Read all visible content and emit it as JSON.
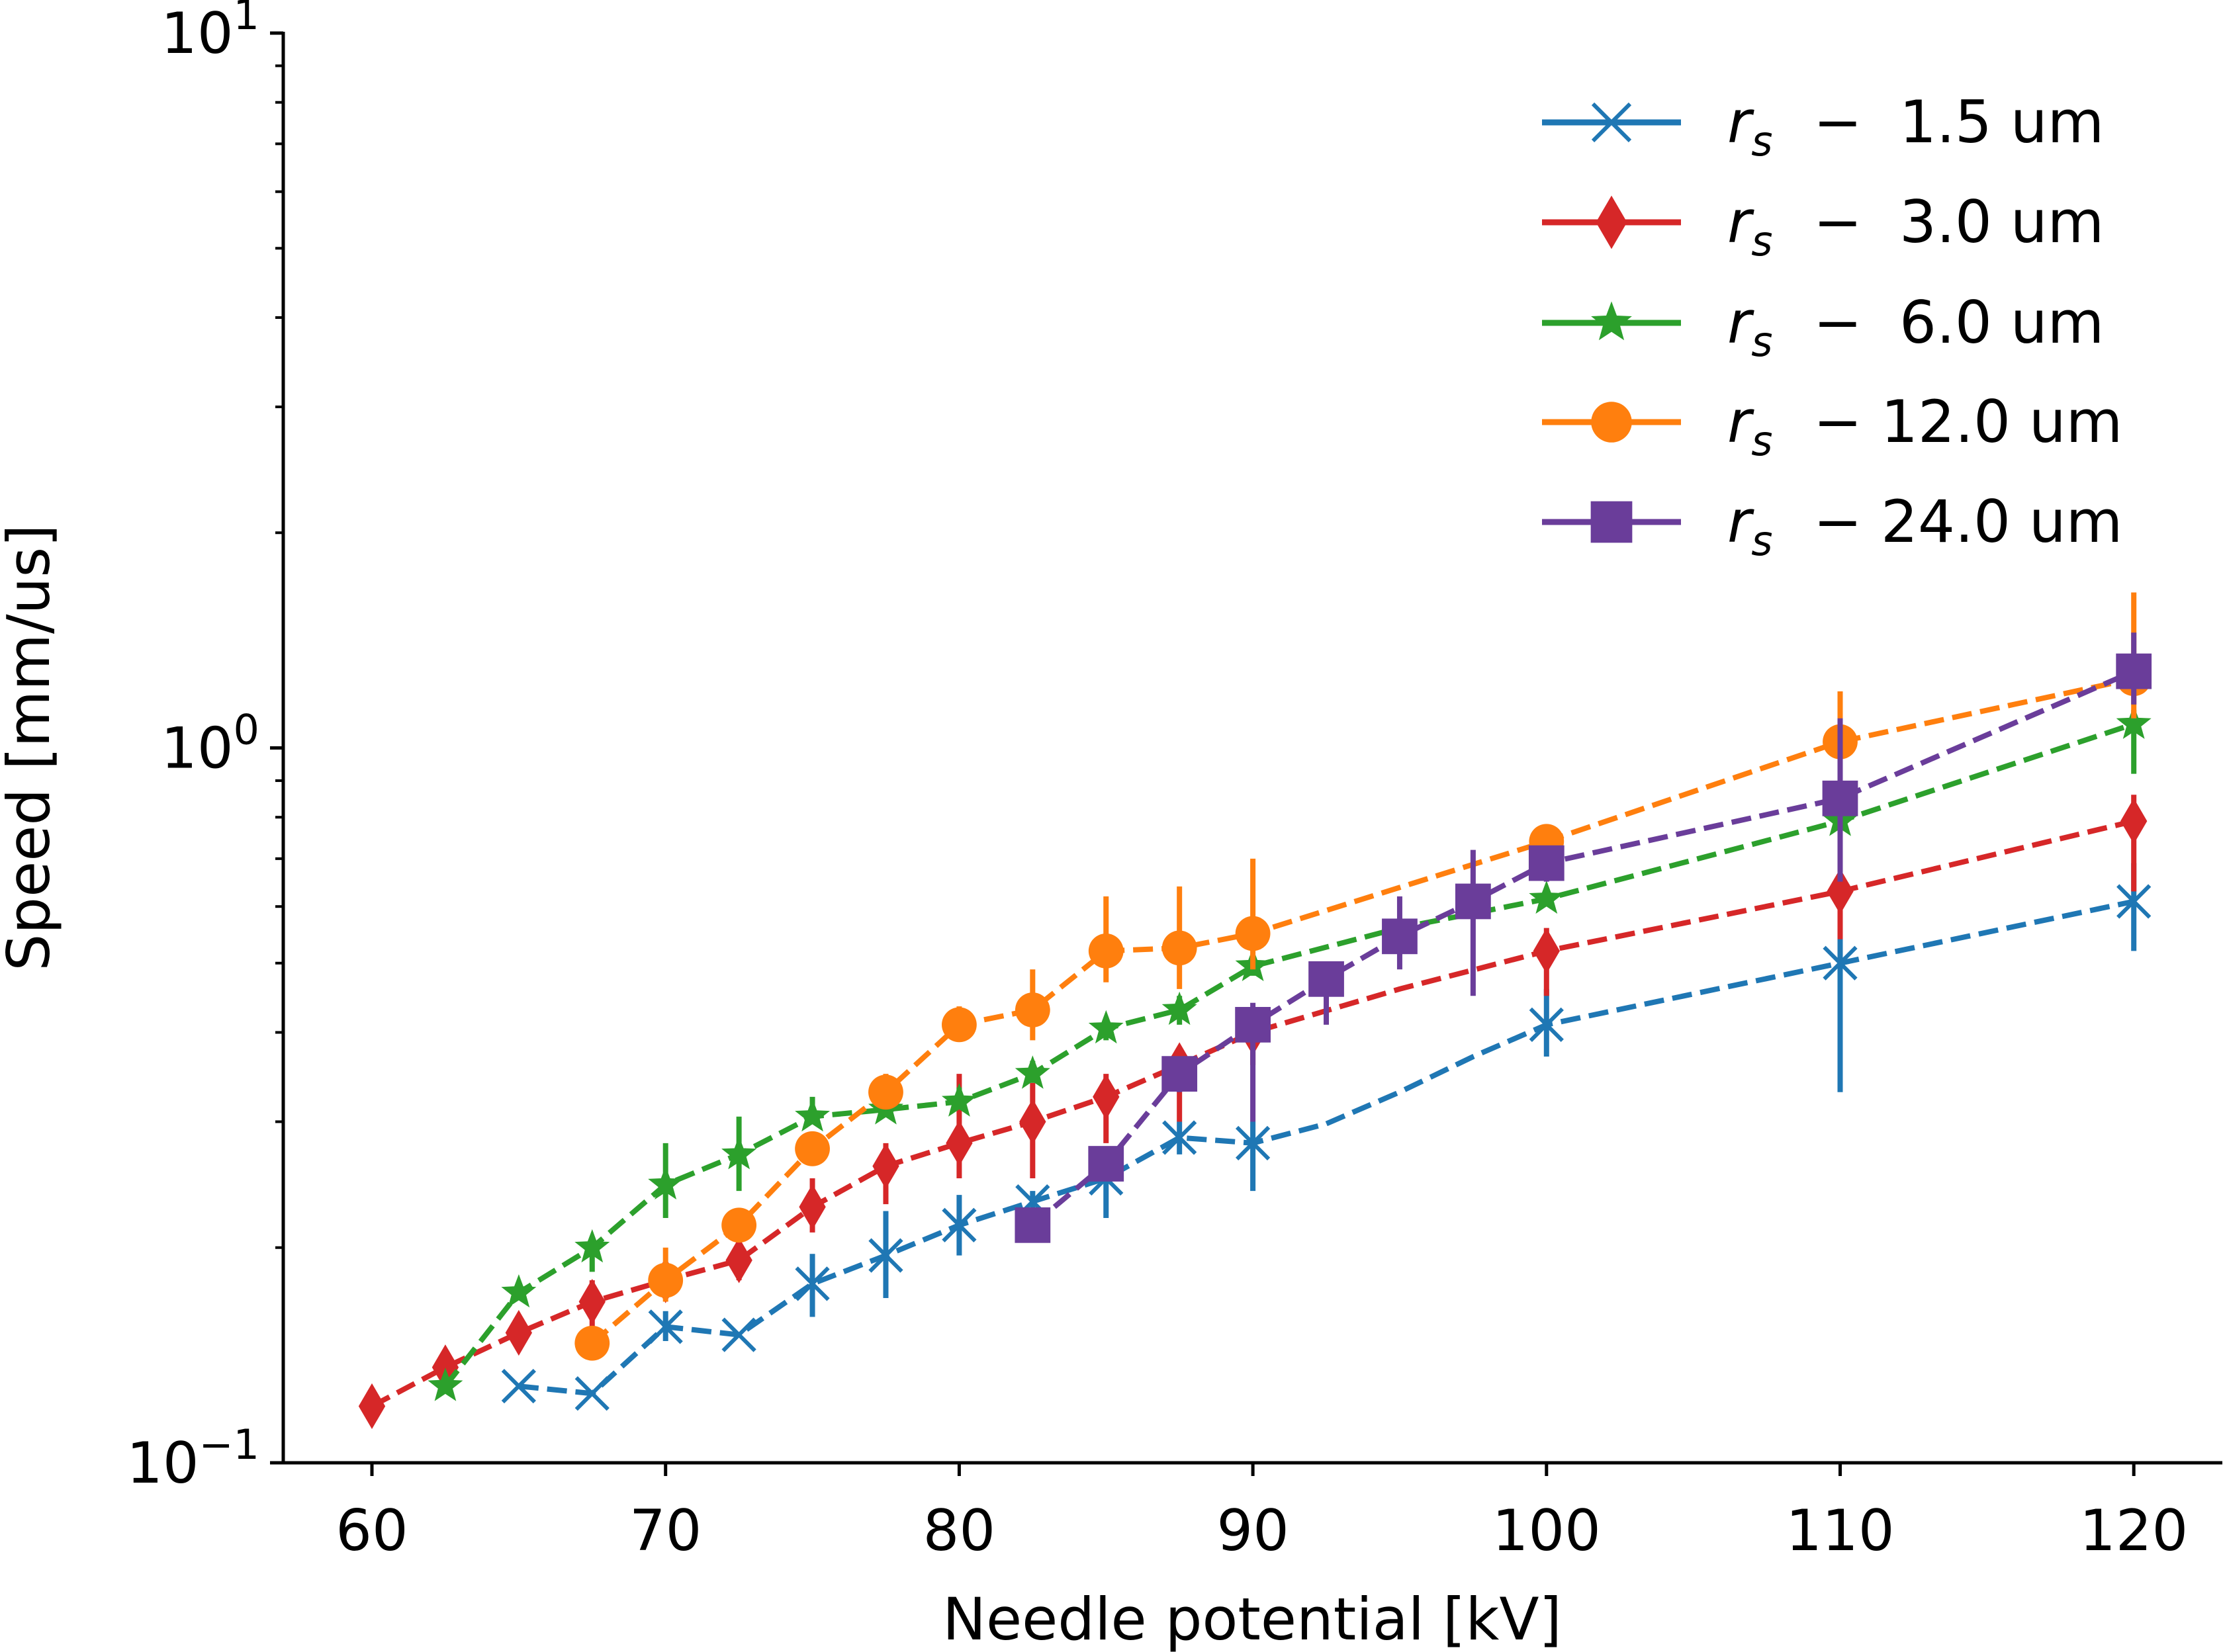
{
  "chart_data": {
    "type": "line",
    "title": "",
    "xlabel": "Needle potential [kV]",
    "ylabel": "Speed [mm/us]",
    "xlim": [
      56.7,
      123.0
    ],
    "ylim": [
      0.1,
      10
    ],
    "yscale": "log",
    "grid": false,
    "legend_position": "top-right",
    "x_ticks": [
      {
        "value": 60,
        "label": "60"
      },
      {
        "value": 70,
        "label": "70"
      },
      {
        "value": 80,
        "label": "80"
      },
      {
        "value": 90,
        "label": "90"
      },
      {
        "value": 100,
        "label": "100"
      },
      {
        "value": 110,
        "label": "110"
      },
      {
        "value": 120,
        "label": "120"
      }
    ],
    "y_ticks": [
      {
        "value": 0.1,
        "base": "10",
        "exp": "−1"
      },
      {
        "value": 1,
        "base": "10",
        "exp": "0"
      },
      {
        "value": 10,
        "base": "10",
        "exp": "1"
      }
    ],
    "series": [
      {
        "name": "rs − 1.5 um",
        "legend_prefix": "r",
        "legend_sub": "s",
        "legend_dash": "−",
        "legend_value": " 1.5 um",
        "color": "#1f77b4",
        "marker": "x",
        "points": [
          {
            "x": 65,
            "y": 0.128,
            "lo": 0.128,
            "hi": 0.128
          },
          {
            "x": 67.5,
            "y": 0.125,
            "lo": 0.125,
            "hi": 0.125
          },
          {
            "x": 70,
            "y": 0.155,
            "lo": 0.148,
            "hi": 0.163
          },
          {
            "x": 72.5,
            "y": 0.151,
            "lo": 0.151,
            "hi": 0.151
          },
          {
            "x": 75,
            "y": 0.178,
            "lo": 0.16,
            "hi": 0.196
          },
          {
            "x": 77.5,
            "y": 0.195,
            "lo": 0.17,
            "hi": 0.225
          },
          {
            "x": 80,
            "y": 0.215,
            "lo": 0.195,
            "hi": 0.237
          },
          {
            "x": 82.5,
            "y": 0.232,
            "lo": 0.225,
            "hi": 0.24
          },
          {
            "x": 85,
            "y": 0.25,
            "lo": 0.22,
            "hi": 0.27
          },
          {
            "x": 87.5,
            "y": 0.285,
            "lo": 0.27,
            "hi": 0.3
          },
          {
            "x": 90,
            "y": 0.28,
            "lo": 0.24,
            "hi": 0.3
          },
          {
            "x": 92.5,
            "y": 0.298
          },
          {
            "x": 95,
            "y": 0.33
          },
          {
            "x": 97.5,
            "y": 0.37
          },
          {
            "x": 100,
            "y": 0.41,
            "lo": 0.37,
            "hi": 0.46
          },
          {
            "x": 110,
            "y": 0.5,
            "lo": 0.33,
            "hi": 0.6
          },
          {
            "x": 120,
            "y": 0.61,
            "lo": 0.52,
            "hi": 0.69
          }
        ]
      },
      {
        "name": "rs − 3.0 um",
        "legend_prefix": "r",
        "legend_sub": "s",
        "legend_dash": "−",
        "legend_value": " 3.0 um",
        "color": "#d62728",
        "marker": "d",
        "points": [
          {
            "x": 60,
            "y": 0.12,
            "lo": 0.12,
            "hi": 0.12
          },
          {
            "x": 62.5,
            "y": 0.136,
            "lo": 0.136,
            "hi": 0.136
          },
          {
            "x": 65,
            "y": 0.152,
            "lo": 0.145,
            "hi": 0.16
          },
          {
            "x": 67.5,
            "y": 0.168,
            "lo": 0.155,
            "hi": 0.18
          },
          {
            "x": 70,
            "y": 0.18,
            "lo": 0.175,
            "hi": 0.19
          },
          {
            "x": 72.5,
            "y": 0.192,
            "lo": 0.18,
            "hi": 0.205
          },
          {
            "x": 75,
            "y": 0.228,
            "lo": 0.21,
            "hi": 0.25
          },
          {
            "x": 77.5,
            "y": 0.26,
            "lo": 0.23,
            "hi": 0.28
          },
          {
            "x": 80,
            "y": 0.28,
            "lo": 0.25,
            "hi": 0.35
          },
          {
            "x": 82.5,
            "y": 0.3,
            "lo": 0.25,
            "hi": 0.34
          },
          {
            "x": 85,
            "y": 0.325,
            "lo": 0.28,
            "hi": 0.35
          },
          {
            "x": 87.5,
            "y": 0.36,
            "lo": 0.3,
            "hi": 0.38
          },
          {
            "x": 90,
            "y": 0.4,
            "lo": 0.36,
            "hi": 0.43
          },
          {
            "x": 95,
            "y": 0.46
          },
          {
            "x": 100,
            "y": 0.52,
            "lo": 0.45,
            "hi": 0.56
          },
          {
            "x": 110,
            "y": 0.63,
            "lo": 0.54,
            "hi": 0.68
          },
          {
            "x": 120,
            "y": 0.79,
            "lo": 0.63,
            "hi": 0.86
          }
        ]
      },
      {
        "name": "rs − 6.0 um",
        "legend_prefix": "r",
        "legend_sub": "s",
        "legend_dash": "−",
        "legend_value": " 6.0 um",
        "color": "#2ca02c",
        "marker": "*",
        "points": [
          {
            "x": 62.5,
            "y": 0.128,
            "lo": 0.128,
            "hi": 0.128
          },
          {
            "x": 65,
            "y": 0.173,
            "lo": 0.17,
            "hi": 0.178
          },
          {
            "x": 67.5,
            "y": 0.2,
            "lo": 0.185,
            "hi": 0.205
          },
          {
            "x": 70,
            "y": 0.245,
            "lo": 0.22,
            "hi": 0.28
          },
          {
            "x": 72.5,
            "y": 0.27,
            "lo": 0.24,
            "hi": 0.305
          },
          {
            "x": 75,
            "y": 0.305,
            "lo": 0.3,
            "hi": 0.325
          },
          {
            "x": 77.5,
            "y": 0.312,
            "lo": 0.31,
            "hi": 0.32
          },
          {
            "x": 80,
            "y": 0.32,
            "lo": 0.315,
            "hi": 0.335
          },
          {
            "x": 82.5,
            "y": 0.35,
            "lo": 0.34,
            "hi": 0.365
          },
          {
            "x": 85,
            "y": 0.405,
            "lo": 0.39,
            "hi": 0.42
          },
          {
            "x": 87.5,
            "y": 0.43,
            "lo": 0.41,
            "hi": 0.45
          },
          {
            "x": 90,
            "y": 0.495,
            "lo": 0.48,
            "hi": 0.51
          },
          {
            "x": 95,
            "y": 0.56
          },
          {
            "x": 100,
            "y": 0.615,
            "lo": 0.6,
            "hi": 0.63
          },
          {
            "x": 110,
            "y": 0.79,
            "lo": 0.76,
            "hi": 0.83
          },
          {
            "x": 120,
            "y": 1.08,
            "lo": 0.92,
            "hi": 1.13
          }
        ]
      },
      {
        "name": "rs − 12.0 um",
        "legend_prefix": "r",
        "legend_sub": "s",
        "legend_dash": "−",
        "legend_value": "12.0 um",
        "color": "#ff7f0e",
        "marker": "o",
        "points": [
          {
            "x": 67.5,
            "y": 0.147,
            "lo": 0.147,
            "hi": 0.147
          },
          {
            "x": 70,
            "y": 0.18,
            "lo": 0.168,
            "hi": 0.2
          },
          {
            "x": 72.5,
            "y": 0.215,
            "lo": 0.21,
            "hi": 0.22
          },
          {
            "x": 75,
            "y": 0.275,
            "lo": 0.265,
            "hi": 0.285
          },
          {
            "x": 77.5,
            "y": 0.33,
            "lo": 0.315,
            "hi": 0.35
          },
          {
            "x": 80,
            "y": 0.41,
            "lo": 0.39,
            "hi": 0.435
          },
          {
            "x": 82.5,
            "y": 0.43,
            "lo": 0.39,
            "hi": 0.49
          },
          {
            "x": 85,
            "y": 0.52,
            "lo": 0.47,
            "hi": 0.62
          },
          {
            "x": 87.5,
            "y": 0.525,
            "lo": 0.46,
            "hi": 0.64
          },
          {
            "x": 90,
            "y": 0.55,
            "lo": 0.49,
            "hi": 0.7
          },
          {
            "x": 100,
            "y": 0.74,
            "lo": 0.7,
            "hi": 0.78
          },
          {
            "x": 110,
            "y": 1.02,
            "lo": 0.96,
            "hi": 1.2
          },
          {
            "x": 120,
            "y": 1.25,
            "lo": 1.1,
            "hi": 1.65
          }
        ]
      },
      {
        "name": "rs − 24.0 um",
        "legend_prefix": "r",
        "legend_sub": "s",
        "legend_dash": "−",
        "legend_value": "24.0 um",
        "color": "#6a3d9a",
        "marker": "s",
        "points": [
          {
            "x": 82.5,
            "y": 0.215,
            "lo": 0.215,
            "hi": 0.215
          },
          {
            "x": 85,
            "y": 0.262,
            "lo": 0.25,
            "hi": 0.27
          },
          {
            "x": 87.5,
            "y": 0.35,
            "lo": 0.33,
            "hi": 0.36
          },
          {
            "x": 90,
            "y": 0.41,
            "lo": 0.3,
            "hi": 0.44
          },
          {
            "x": 92.5,
            "y": 0.475,
            "lo": 0.41,
            "hi": 0.5
          },
          {
            "x": 95,
            "y": 0.545,
            "lo": 0.49,
            "hi": 0.62
          },
          {
            "x": 97.5,
            "y": 0.61,
            "lo": 0.45,
            "hi": 0.72
          },
          {
            "x": 100,
            "y": 0.69,
            "lo": 0.65,
            "hi": 0.72
          },
          {
            "x": 110,
            "y": 0.85,
            "lo": 0.65,
            "hi": 1.1
          },
          {
            "x": 120,
            "y": 1.28,
            "lo": 1.15,
            "hi": 1.45
          }
        ]
      }
    ]
  }
}
